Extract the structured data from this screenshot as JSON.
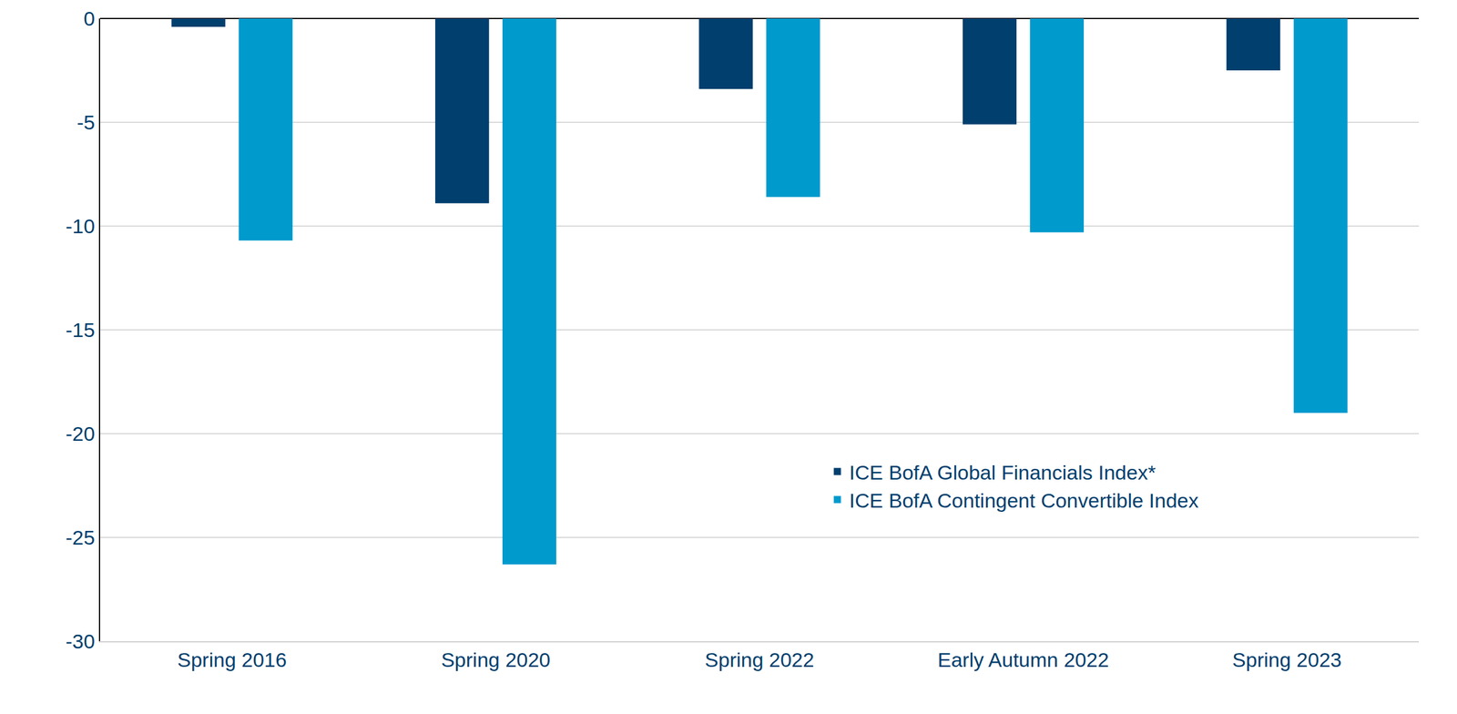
{
  "chart_data": {
    "type": "bar",
    "categories": [
      "Spring 2016",
      "Spring 2020",
      "Spring 2022",
      "Early Autumn 2022",
      "Spring 2023"
    ],
    "series": [
      {
        "name": "ICE BofA Global Financials Index*",
        "color": "#003f6e",
        "values": [
          -0.4,
          -8.9,
          -3.4,
          -5.1,
          -2.5
        ]
      },
      {
        "name": "ICE BofA Contingent Convertible Index",
        "color": "#009acd",
        "values": [
          -10.7,
          -26.3,
          -8.6,
          -10.3,
          -19.0
        ]
      }
    ],
    "ylim": [
      -30,
      0
    ],
    "yticks": [
      -30,
      -25,
      -20,
      -15,
      -10,
      -5,
      0
    ],
    "grid": true,
    "legend": "lower right"
  }
}
